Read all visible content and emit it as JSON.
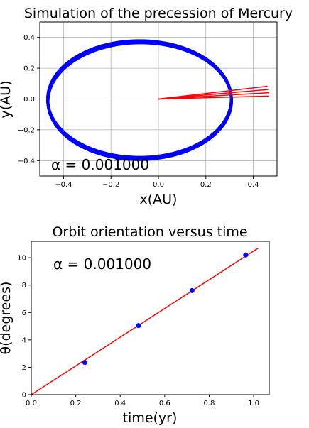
{
  "colors": {
    "orbit": "#0000ff",
    "orientation_lines": "#ff0000",
    "points": "#0000ff",
    "fit_line": "#ff0000",
    "grid": "#b0b0b0",
    "axes": "#000000"
  },
  "chart_data": [
    {
      "type": "line",
      "title": "Simulation of the precession of Mercury",
      "xlabel": "x(AU)",
      "ylabel": "y(AU)",
      "xlim": [
        -0.5,
        0.5
      ],
      "ylim": [
        -0.5,
        0.5
      ],
      "xticks": [
        -0.4,
        -0.2,
        0.0,
        0.2,
        0.4
      ],
      "yticks": [
        -0.4,
        -0.2,
        0.0,
        0.2,
        0.4
      ],
      "xtick_labels": [
        "−0.4",
        "−0.2",
        "0.0",
        "0.2",
        "0.4"
      ],
      "ytick_labels": [
        "−0.4",
        "−0.2",
        "0.0",
        "0.2",
        "0.4"
      ],
      "grid": true,
      "annotation": "α = 0.001000",
      "series": [
        {
          "kind": "orbit",
          "color": "blue",
          "semi_major_axis": 0.387,
          "eccentricity": 0.206,
          "focus": [
            0,
            0
          ],
          "perihelion_angle_deg_range": [
            0,
            10.2
          ]
        },
        {
          "kind": "orientation_lines",
          "color": "red",
          "origin": [
            0,
            0
          ],
          "radius": 0.467,
          "angles_deg": [
            2.35,
            5.05,
            7.6,
            10.2
          ]
        }
      ]
    },
    {
      "type": "scatter",
      "title": "Orbit orientation versus time",
      "xlabel": "time(yr)",
      "ylabel": "θ(degrees)",
      "xlim": [
        0,
        1.07
      ],
      "ylim": [
        0,
        11.2
      ],
      "xticks": [
        0.0,
        0.2,
        0.4,
        0.6,
        0.8,
        1.0
      ],
      "yticks": [
        0,
        2,
        4,
        6,
        8,
        10
      ],
      "xtick_labels": [
        "0.0",
        "0.2",
        "0.4",
        "0.6",
        "0.8",
        "1.0"
      ],
      "ytick_labels": [
        "0",
        "2",
        "4",
        "6",
        "8",
        "10"
      ],
      "grid": false,
      "annotation": "α = 0.001000",
      "points": {
        "x": [
          0.241,
          0.482,
          0.723,
          0.964
        ],
        "y": [
          2.35,
          5.05,
          7.6,
          10.2
        ]
      },
      "fit_line": {
        "x": [
          0,
          1.02
        ],
        "y": [
          0,
          10.7
        ]
      }
    }
  ]
}
